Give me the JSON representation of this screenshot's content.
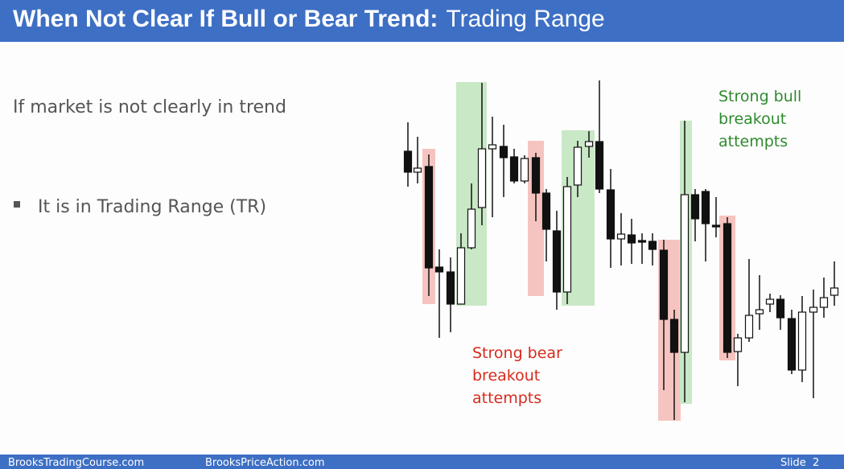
{
  "header": {
    "title_bold": "When Not Clear If Bull or Bear Trend:",
    "title_rest": "Trading Range"
  },
  "body": {
    "intro": "If market is not clearly in trend",
    "bullet": "It is in Trading Range (TR)"
  },
  "annotations": {
    "bull": [
      "Strong bull",
      "breakout",
      "attempts"
    ],
    "bear": [
      "Strong bear",
      "breakout",
      "attempts"
    ]
  },
  "footer": {
    "left": "BrooksTradingCourse.com",
    "center": "BrooksPriceAction.com",
    "right": "Slide  2"
  }
}
